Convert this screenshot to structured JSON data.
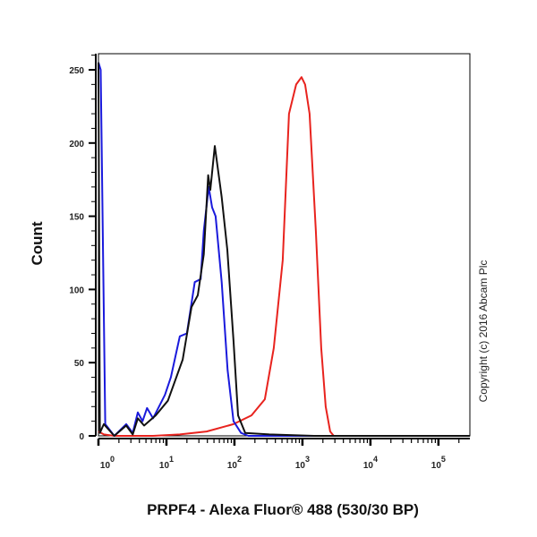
{
  "chart_data": {
    "type": "line",
    "title": "",
    "xlabel": "PRPF4 - Alexa Fluor® 488 (530/30 BP)",
    "ylabel": "Count",
    "x_scale": "log",
    "xlim": [
      1,
      290000
    ],
    "ylim": [
      0,
      261
    ],
    "grid": false,
    "legend": "none",
    "x_ticks": [
      {
        "value": 1,
        "base": "10",
        "exp": "0"
      },
      {
        "value": 10,
        "base": "10",
        "exp": "1"
      },
      {
        "value": 100,
        "base": "10",
        "exp": "2"
      },
      {
        "value": 1000,
        "base": "10",
        "exp": "3"
      },
      {
        "value": 10000,
        "base": "10",
        "exp": "4"
      },
      {
        "value": 100000,
        "base": "10",
        "exp": "5"
      }
    ],
    "y_ticks": [
      "0",
      "50",
      "100",
      "150",
      "200",
      "250"
    ],
    "annotation": "Copyright (c) 2016 Abcam Plc",
    "series": [
      {
        "color": "#111111",
        "x": [
          1.0,
          1.05,
          1.2,
          1.71,
          2.56,
          3.19,
          3.79,
          4.69,
          6.95,
          10.5,
          17.3,
          23.4,
          28.9,
          35.4,
          41.1,
          44.2,
          51.4,
          64.9,
          78.5,
          97,
          113,
          144,
          326,
          1480,
          290000
        ],
        "y": [
          255,
          2,
          8,
          0,
          7,
          1,
          12,
          7,
          14,
          24,
          52,
          88,
          96,
          124,
          178,
          168,
          198,
          163,
          127,
          65,
          14,
          2,
          1,
          0,
          0
        ]
      },
      {
        "color": "#1a1adc",
        "x": [
          1.0,
          1.08,
          1.26,
          1.71,
          2.56,
          3.19,
          3.79,
          4.46,
          5.18,
          6.35,
          9.5,
          11.6,
          15.7,
          20,
          26.1,
          31.9,
          35.4,
          41.9,
          46.9,
          52.9,
          64.9,
          79.2,
          97,
          125,
          160,
          290000
        ],
        "y": [
          255,
          250,
          8,
          0,
          8,
          2,
          16,
          10,
          19,
          12,
          28,
          40,
          68,
          70,
          105,
          107,
          140,
          170,
          156,
          150,
          105,
          45,
          10,
          2,
          0,
          0
        ]
      },
      {
        "color": "#e8231e",
        "x": [
          1.0,
          1.2,
          1.7,
          6.35,
          15.7,
          39,
          97,
          178,
          280,
          379,
          513,
          635,
          809,
          970,
          1095,
          1273,
          1574,
          1889,
          2198,
          2558,
          2885,
          290000
        ],
        "y": [
          3,
          1,
          0,
          0,
          1,
          3,
          8,
          14,
          25,
          60,
          120,
          220,
          240,
          245,
          240,
          220,
          140,
          60,
          20,
          3,
          0,
          0
        ]
      }
    ]
  }
}
